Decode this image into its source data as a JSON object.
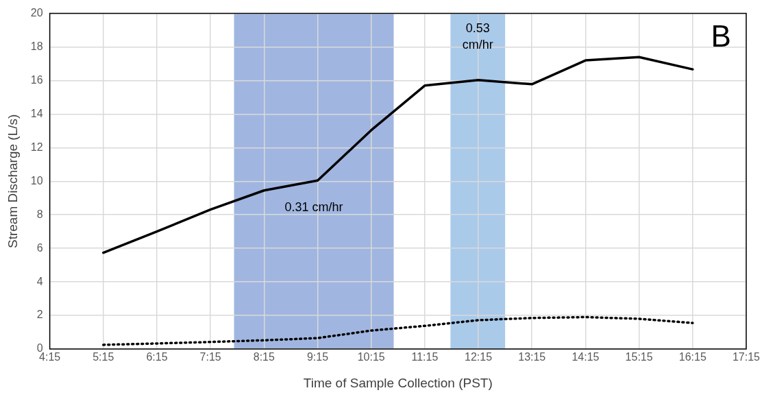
{
  "chart_data": {
    "type": "line",
    "xlabel": "Time of Sample Collection (PST)",
    "ylabel": "Stream Discharge (L/s)",
    "x": [
      5.25,
      6.25,
      7.25,
      8.25,
      9.25,
      10.25,
      11.25,
      12.25,
      13.25,
      14.25,
      15.25,
      16.25
    ],
    "series": [
      {
        "color": "#000000",
        "line_style": "solid",
        "values": [
          5.74,
          7.0,
          8.31,
          9.45,
          10.04,
          13.04,
          15.7,
          16.03,
          15.78,
          17.2,
          17.4,
          16.67
        ]
      },
      {
        "color": "#000000",
        "line_style": "dotted",
        "values": [
          0.25,
          0.33,
          0.42,
          0.52,
          0.65,
          1.1,
          1.38,
          1.72,
          1.85,
          1.9,
          1.8,
          1.55
        ]
      }
    ],
    "xlim": [
      4.25,
      17.25
    ],
    "xticks": [
      {
        "value": 4.25,
        "label": "4:15"
      },
      {
        "value": 5.25,
        "label": "5:15"
      },
      {
        "value": 6.25,
        "label": "6:15"
      },
      {
        "value": 7.25,
        "label": "7:15"
      },
      {
        "value": 8.25,
        "label": "8:15"
      },
      {
        "value": 9.25,
        "label": "9:15"
      },
      {
        "value": 10.25,
        "label": "10:15"
      },
      {
        "value": 11.25,
        "label": "11:15"
      },
      {
        "value": 12.25,
        "label": "12:15"
      },
      {
        "value": 13.25,
        "label": "13:15"
      },
      {
        "value": 14.25,
        "label": "14:15"
      },
      {
        "value": 15.25,
        "label": "15:15"
      },
      {
        "value": 16.25,
        "label": "16:15"
      },
      {
        "value": 17.25,
        "label": "17:15"
      }
    ],
    "ylim": [
      0,
      20
    ],
    "yticks": [
      0,
      2,
      4,
      6,
      8,
      10,
      12,
      14,
      16,
      18,
      20
    ],
    "bands": [
      {
        "axis": "x",
        "from": 7.69,
        "to": 10.67,
        "label": "0.31 cm/hr",
        "color": "#a0b6e0"
      },
      {
        "axis": "x",
        "from": 11.73,
        "to": 12.75,
        "label": "0.53 cm/hr",
        "color": "#aacaea"
      }
    ],
    "annotations": [
      "B"
    ],
    "grid": true,
    "legend": false,
    "marker": "none"
  }
}
